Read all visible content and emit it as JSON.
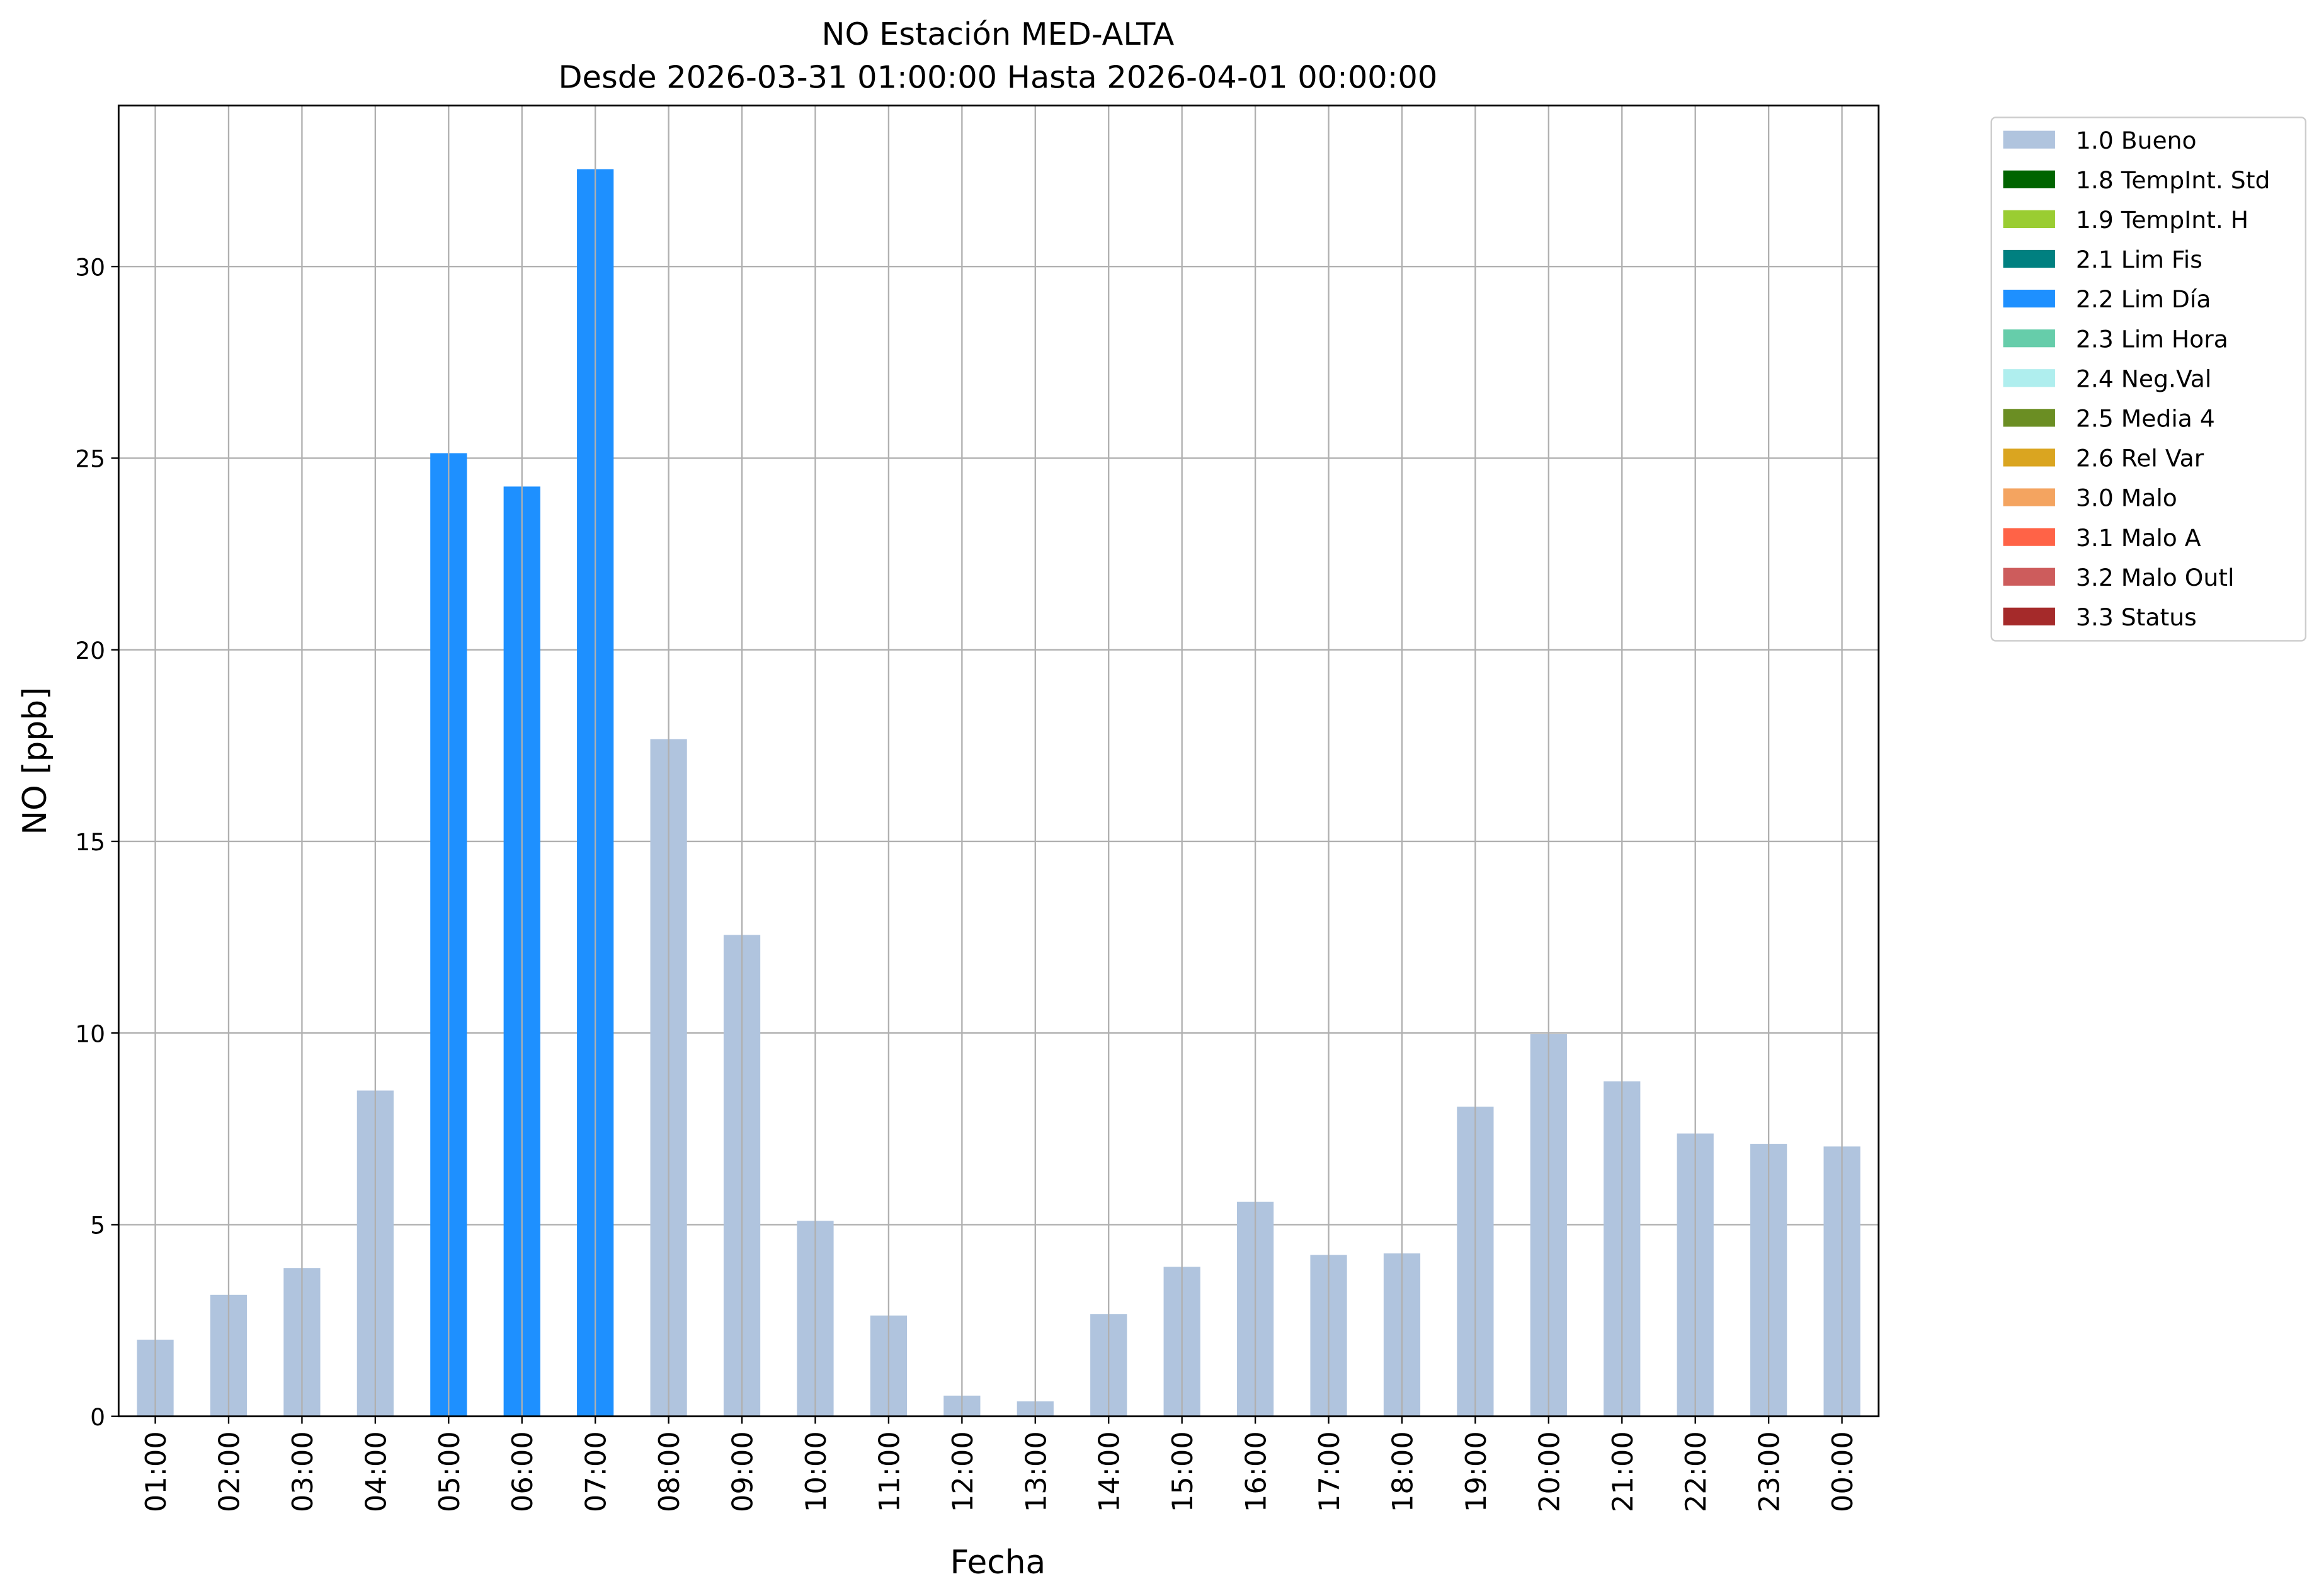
{
  "chart_data": {
    "type": "bar",
    "title": "NO Estación MED-ALTA",
    "subtitle": "Desde 2026-03-31 01:00:00 Hasta 2026-04-01 00:00:00",
    "xlabel": "Fecha",
    "ylabel": "NO [ppb]",
    "ylim": [
      0,
      34.2
    ],
    "yticks": [
      0,
      5,
      10,
      15,
      20,
      25,
      30
    ],
    "grid": true,
    "legend_placement": "outside-top-right",
    "categories": [
      "01:00",
      "02:00",
      "03:00",
      "04:00",
      "05:00",
      "06:00",
      "07:00",
      "08:00",
      "09:00",
      "10:00",
      "11:00",
      "12:00",
      "13:00",
      "14:00",
      "15:00",
      "16:00",
      "17:00",
      "18:00",
      "19:00",
      "20:00",
      "21:00",
      "22:00",
      "23:00",
      "00:00"
    ],
    "values": [
      2.0,
      3.17,
      3.87,
      8.5,
      25.13,
      24.26,
      32.54,
      17.67,
      12.56,
      5.1,
      2.63,
      0.54,
      0.39,
      2.67,
      3.9,
      5.6,
      4.21,
      4.25,
      8.08,
      9.97,
      8.74,
      7.38,
      7.11,
      7.04
    ],
    "flags": [
      "1.0 Bueno",
      "1.0 Bueno",
      "1.0 Bueno",
      "1.0 Bueno",
      "2.2 Lim Día",
      "2.2 Lim Día",
      "2.2 Lim Día",
      "1.0 Bueno",
      "1.0 Bueno",
      "1.0 Bueno",
      "1.0 Bueno",
      "1.0 Bueno",
      "1.0 Bueno",
      "1.0 Bueno",
      "1.0 Bueno",
      "1.0 Bueno",
      "1.0 Bueno",
      "1.0 Bueno",
      "1.0 Bueno",
      "1.0 Bueno",
      "1.0 Bueno",
      "1.0 Bueno",
      "1.0 Bueno",
      "1.0 Bueno"
    ],
    "legend": [
      {
        "label": "1.0 Bueno",
        "color": "#b0c4de"
      },
      {
        "label": "1.8 TempInt. Std",
        "color": "#006400"
      },
      {
        "label": "1.9 TempInt. H",
        "color": "#9acd32"
      },
      {
        "label": "2.1 Lim Fis",
        "color": "#008080"
      },
      {
        "label": "2.2 Lim Día",
        "color": "#1e90ff"
      },
      {
        "label": "2.3 Lim Hora",
        "color": "#66cdaa"
      },
      {
        "label": "2.4 Neg.Val",
        "color": "#afeeee"
      },
      {
        "label": "2.5 Media 4",
        "color": "#6b8e23"
      },
      {
        "label": "2.6 Rel Var",
        "color": "#daa520"
      },
      {
        "label": "3.0 Malo",
        "color": "#f4a460"
      },
      {
        "label": "3.1 Malo A",
        "color": "#ff6347"
      },
      {
        "label": "3.2 Malo Outl",
        "color": "#cd5c5c"
      },
      {
        "label": "3.3 Status",
        "color": "#a52a2a"
      }
    ]
  }
}
